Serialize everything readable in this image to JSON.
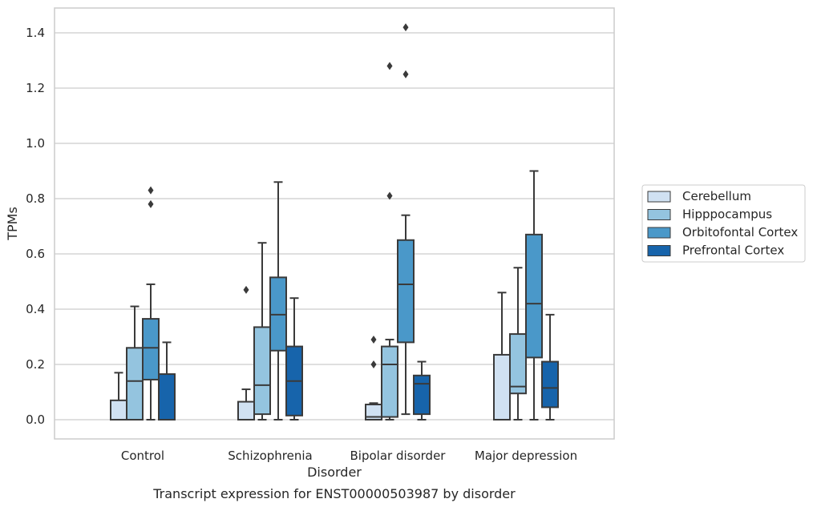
{
  "caption": "Transcript expression for ENST00000503987 by disorder",
  "colors": {
    "Cerebellum": "#d0e1f2",
    "Hipppocampus": "#94c4df",
    "Orbitofontal Cortex": "#4a98c9",
    "Prefrontal Cortex": "#1764ab",
    "edge": "#3a3a3a",
    "grid": "#cccccc"
  },
  "chart_data": {
    "type": "box",
    "title": "",
    "xlabel": "Disorder",
    "ylabel": "TPMs",
    "ylim": [
      -0.07,
      1.49
    ],
    "yticks": [
      0.0,
      0.2,
      0.4,
      0.6,
      0.8,
      1.0,
      1.2,
      1.4
    ],
    "ytick_labels": [
      "0.0",
      "0.2",
      "0.4",
      "0.6",
      "0.8",
      "1.0",
      "1.2",
      "1.4"
    ],
    "grid": true,
    "legend_position": "right",
    "categories": [
      "Control",
      "Schizophrenia",
      "Bipolar disorder",
      "Major depression"
    ],
    "series": [
      {
        "name": "Cerebellum",
        "boxes": [
          {
            "whislo": 0.0,
            "q1": 0.0,
            "med": 0.0,
            "q3": 0.07,
            "whishi": 0.17,
            "fliers": []
          },
          {
            "whislo": 0.0,
            "q1": 0.0,
            "med": 0.0,
            "q3": 0.065,
            "whishi": 0.11,
            "fliers": [
              0.47
            ]
          },
          {
            "whislo": 0.0,
            "q1": 0.0,
            "med": 0.01,
            "q3": 0.055,
            "whishi": 0.06,
            "fliers": [
              0.2,
              0.29
            ]
          },
          {
            "whislo": 0.0,
            "q1": 0.0,
            "med": 0.0,
            "q3": 0.235,
            "whishi": 0.46,
            "fliers": []
          }
        ]
      },
      {
        "name": "Hipppocampus",
        "boxes": [
          {
            "whislo": 0.0,
            "q1": 0.0,
            "med": 0.14,
            "q3": 0.26,
            "whishi": 0.41,
            "fliers": []
          },
          {
            "whislo": 0.0,
            "q1": 0.02,
            "med": 0.125,
            "q3": 0.335,
            "whishi": 0.64,
            "fliers": []
          },
          {
            "whislo": 0.0,
            "q1": 0.01,
            "med": 0.2,
            "q3": 0.265,
            "whishi": 0.29,
            "fliers": [
              0.81,
              1.28
            ]
          },
          {
            "whislo": 0.0,
            "q1": 0.095,
            "med": 0.12,
            "q3": 0.31,
            "whishi": 0.55,
            "fliers": []
          }
        ]
      },
      {
        "name": "Orbitofontal Cortex",
        "boxes": [
          {
            "whislo": 0.0,
            "q1": 0.145,
            "med": 0.26,
            "q3": 0.365,
            "whishi": 0.49,
            "fliers": [
              0.78,
              0.83
            ]
          },
          {
            "whislo": 0.0,
            "q1": 0.25,
            "med": 0.38,
            "q3": 0.515,
            "whishi": 0.86,
            "fliers": []
          },
          {
            "whislo": 0.02,
            "q1": 0.28,
            "med": 0.49,
            "q3": 0.65,
            "whishi": 0.74,
            "fliers": [
              1.25,
              1.42
            ]
          },
          {
            "whislo": 0.0,
            "q1": 0.225,
            "med": 0.42,
            "q3": 0.67,
            "whishi": 0.9,
            "fliers": []
          }
        ]
      },
      {
        "name": "Prefrontal Cortex",
        "boxes": [
          {
            "whislo": 0.0,
            "q1": 0.0,
            "med": 0.0,
            "q3": 0.165,
            "whishi": 0.28,
            "fliers": []
          },
          {
            "whislo": 0.0,
            "q1": 0.015,
            "med": 0.14,
            "q3": 0.265,
            "whishi": 0.44,
            "fliers": []
          },
          {
            "whislo": 0.0,
            "q1": 0.02,
            "med": 0.13,
            "q3": 0.16,
            "whishi": 0.21,
            "fliers": []
          },
          {
            "whislo": 0.0,
            "q1": 0.045,
            "med": 0.115,
            "q3": 0.21,
            "whishi": 0.38,
            "fliers": []
          }
        ]
      }
    ]
  }
}
